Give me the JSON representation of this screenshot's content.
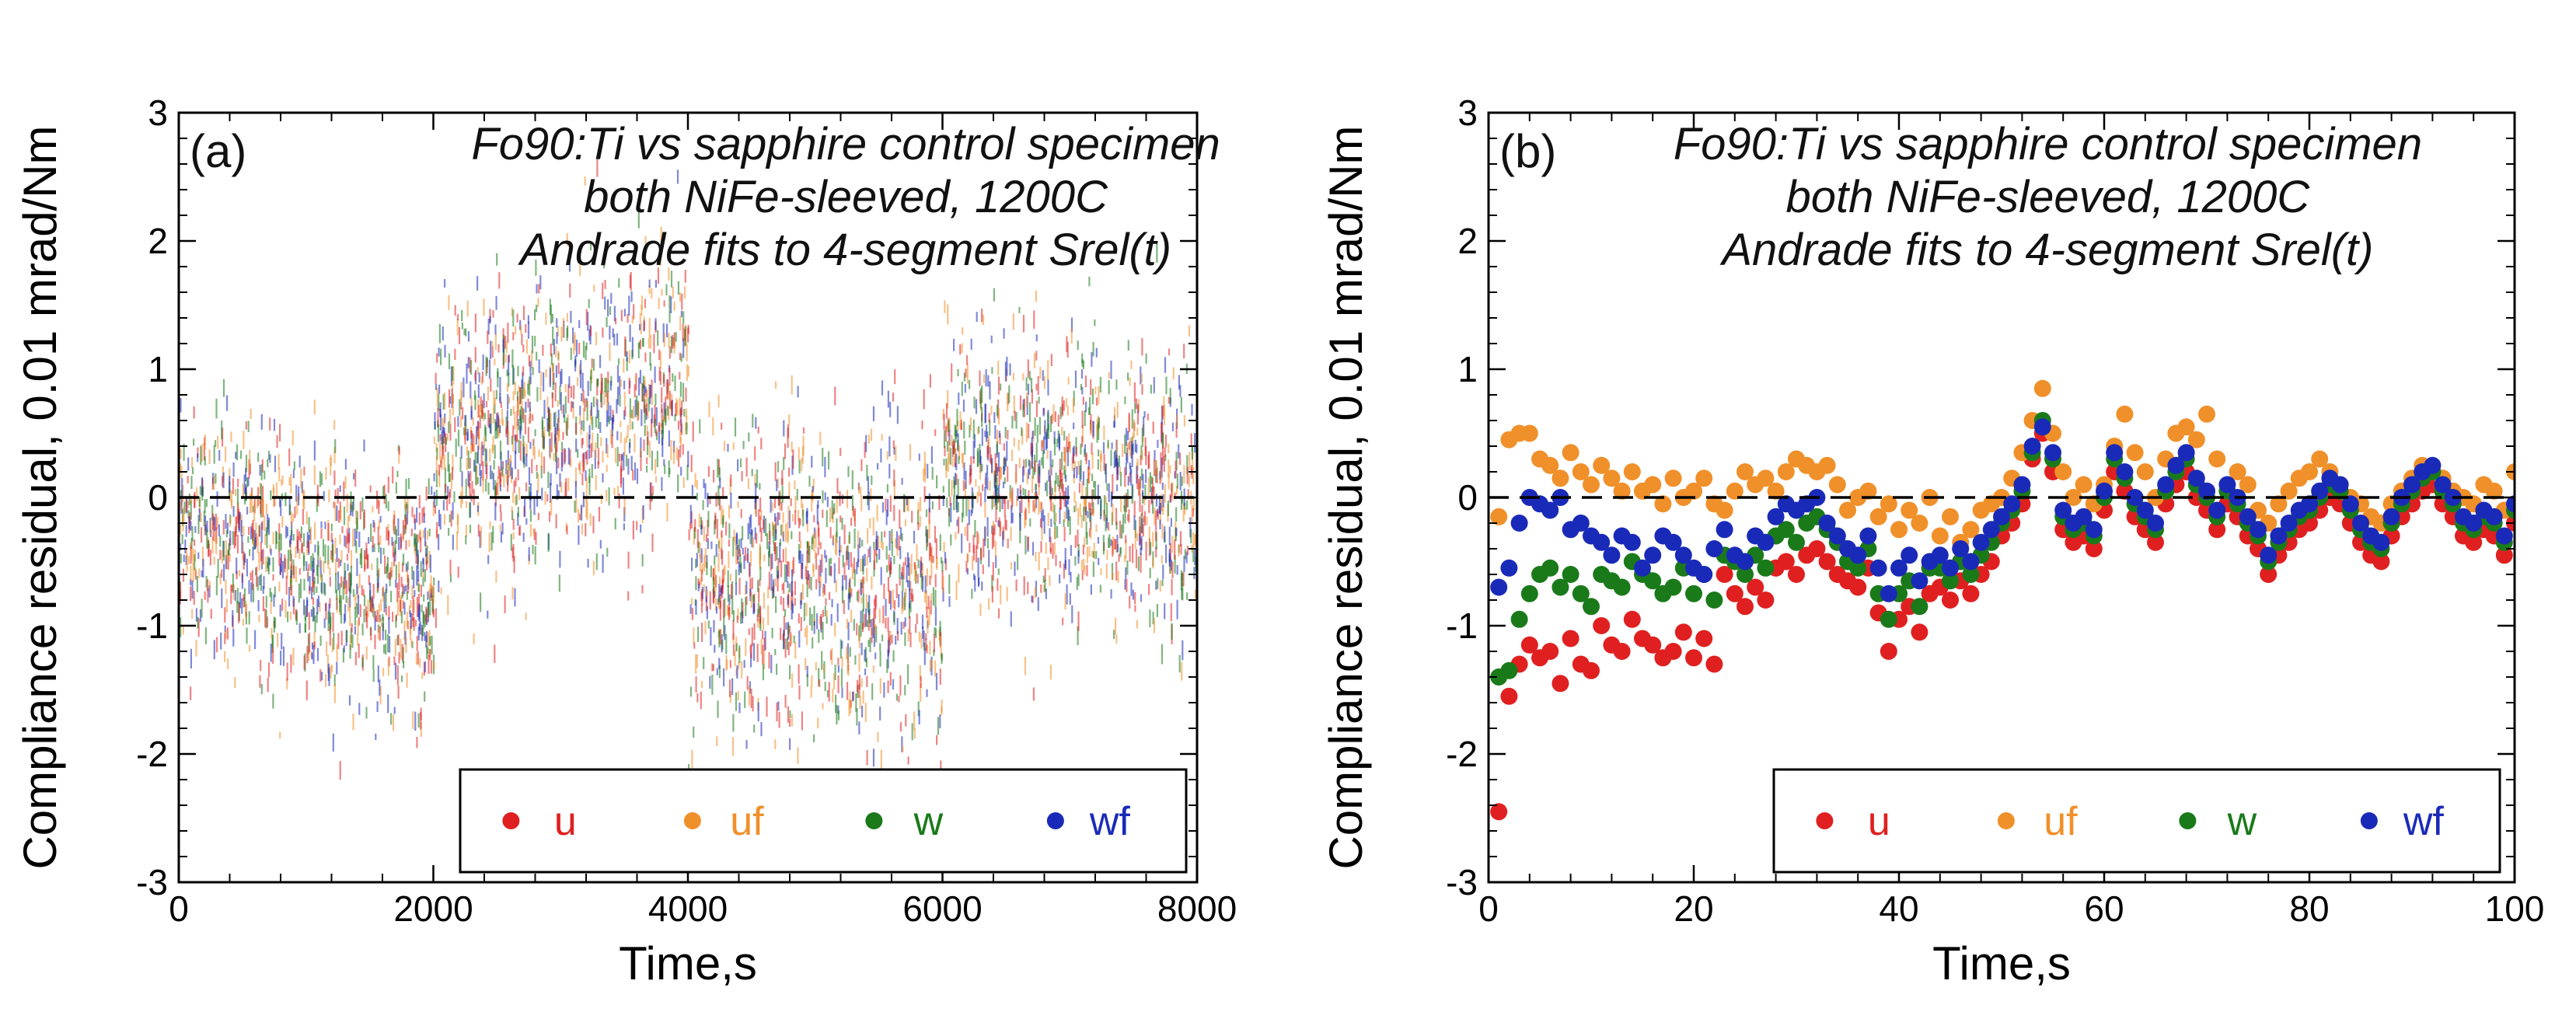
{
  "chart_data": [
    {
      "type": "scatter",
      "panel_label": "(a)",
      "annotation": [
        "Fo90:Ti vs sapphire control specimen",
        "both NiFe-sleeved, 1200C",
        "Andrade fits to 4-segment Srel(t)"
      ],
      "xlabel": "Time,s",
      "ylabel": "Compliance residual, 0.01 mrad/Nm",
      "xlim": [
        0,
        8000
      ],
      "ylim": [
        -3,
        3
      ],
      "xticks": [
        0,
        2000,
        4000,
        6000,
        8000
      ],
      "yticks": [
        -3,
        -2,
        -1,
        0,
        1,
        2,
        3
      ],
      "reference_line": 0,
      "legend_position": "bottom-right",
      "series": [
        {
          "name": "u",
          "color": "#e02020"
        },
        {
          "name": "uf",
          "color": "#f0902a"
        },
        {
          "name": "w",
          "color": "#1a7a1a"
        },
        {
          "name": "wf",
          "color": "#1a2ab8"
        }
      ],
      "segments": [
        {
          "x_start": 0,
          "x_end": 2000,
          "baseline_start": -0.2,
          "baseline_end": -0.8,
          "scatter": 0.45
        },
        {
          "x_start": 2000,
          "x_end": 4000,
          "baseline_start": 0.4,
          "baseline_end": 0.9,
          "scatter": 0.5
        },
        {
          "x_start": 4000,
          "x_end": 6000,
          "baseline_start": -0.6,
          "baseline_end": -0.7,
          "scatter": 0.6
        },
        {
          "x_start": 6000,
          "x_end": 8000,
          "baseline_start": 0.3,
          "baseline_end": 0.0,
          "scatter": 0.5
        }
      ]
    },
    {
      "type": "scatter",
      "panel_label": "(b)",
      "annotation": [
        "Fo90:Ti vs sapphire control specimen",
        "both NiFe-sleeved, 1200C",
        "Andrade fits to 4-segment Srel(t)"
      ],
      "xlabel": "Time,s",
      "ylabel": "Compliance residual, 0.01 mrad/Nm",
      "xlim": [
        0,
        100
      ],
      "ylim": [
        -3,
        3
      ],
      "xticks": [
        0,
        20,
        40,
        60,
        80,
        100
      ],
      "yticks": [
        -3,
        -2,
        -1,
        0,
        1,
        2,
        3
      ],
      "reference_line": 0,
      "legend_position": "bottom-right",
      "x": [
        1,
        2,
        3,
        4,
        5,
        6,
        7,
        8,
        9,
        10,
        11,
        12,
        13,
        14,
        15,
        16,
        17,
        18,
        19,
        20,
        21,
        22,
        23,
        24,
        25,
        26,
        27,
        28,
        29,
        30,
        31,
        32,
        33,
        34,
        35,
        36,
        37,
        38,
        39,
        40,
        41,
        42,
        43,
        44,
        45,
        46,
        47,
        48,
        49,
        50,
        51,
        52,
        53,
        54,
        55,
        56,
        57,
        58,
        59,
        60,
        61,
        62,
        63,
        64,
        65,
        66,
        67,
        68,
        69,
        70,
        71,
        72,
        73,
        74,
        75,
        76,
        77,
        78,
        79,
        80,
        81,
        82,
        83,
        84,
        85,
        86,
        87,
        88,
        89,
        90,
        91,
        92,
        93,
        94,
        95,
        96,
        97,
        98,
        99,
        100
      ],
      "series": [
        {
          "name": "u",
          "color": "#e02020",
          "values": [
            -2.45,
            -1.55,
            -1.3,
            -1.15,
            -1.25,
            -1.2,
            -1.45,
            -1.1,
            -1.3,
            -1.35,
            -1.0,
            -1.15,
            -1.2,
            -0.95,
            -1.1,
            -1.15,
            -1.25,
            -1.2,
            -1.05,
            -1.25,
            -1.1,
            -1.3,
            -0.6,
            -0.75,
            -0.85,
            -0.7,
            -0.8,
            -0.55,
            -0.5,
            -0.6,
            -0.45,
            -0.4,
            -0.5,
            -0.6,
            -0.65,
            -0.7,
            -0.55,
            -0.9,
            -1.2,
            -0.95,
            -0.85,
            -1.05,
            -0.75,
            -0.7,
            -0.8,
            -0.65,
            -0.75,
            -0.6,
            -0.5,
            -0.3,
            -0.2,
            -0.05,
            0.3,
            0.5,
            0.2,
            -0.25,
            -0.35,
            -0.3,
            -0.4,
            -0.1,
            0.2,
            0.05,
            -0.15,
            -0.25,
            -0.35,
            -0.05,
            0.1,
            0.2,
            0.0,
            -0.1,
            -0.25,
            -0.05,
            -0.15,
            -0.3,
            -0.4,
            -0.6,
            -0.45,
            -0.35,
            -0.25,
            -0.2,
            -0.1,
            0.0,
            -0.05,
            -0.2,
            -0.35,
            -0.45,
            -0.5,
            -0.3,
            -0.15,
            -0.05,
            0.05,
            0.1,
            -0.05,
            -0.15,
            -0.3,
            -0.35,
            -0.25,
            -0.3,
            -0.45,
            -0.2
          ]
        },
        {
          "name": "uf",
          "color": "#f0902a",
          "values": [
            -0.15,
            0.45,
            0.5,
            0.5,
            0.3,
            0.25,
            0.15,
            0.35,
            0.2,
            0.1,
            0.25,
            0.15,
            0.05,
            0.2,
            0.05,
            0.1,
            -0.05,
            0.15,
            0.0,
            0.05,
            0.15,
            -0.05,
            -0.1,
            0.05,
            0.2,
            0.1,
            0.15,
            0.05,
            0.2,
            0.3,
            0.25,
            0.2,
            0.25,
            0.1,
            -0.1,
            0.0,
            0.05,
            -0.15,
            -0.05,
            -0.25,
            -0.1,
            -0.2,
            0.0,
            -0.3,
            -0.15,
            -0.35,
            -0.25,
            -0.1,
            -0.05,
            0.0,
            0.15,
            0.35,
            0.6,
            0.85,
            0.5,
            0.2,
            0.0,
            0.1,
            -0.05,
            0.1,
            0.4,
            0.65,
            0.35,
            0.2,
            0.0,
            0.3,
            0.5,
            0.55,
            0.45,
            0.65,
            0.3,
            0.05,
            0.2,
            0.1,
            -0.1,
            -0.2,
            -0.05,
            0.05,
            0.15,
            0.2,
            0.3,
            0.2,
            0.1,
            0.0,
            -0.05,
            -0.15,
            -0.2,
            -0.05,
            0.05,
            0.15,
            0.25,
            0.2,
            0.15,
            0.05,
            0.0,
            -0.05,
            0.1,
            0.05,
            -0.1,
            0.2
          ]
        },
        {
          "name": "w",
          "color": "#1a7a1a",
          "values": [
            -1.4,
            -1.35,
            -0.95,
            -0.75,
            -0.6,
            -0.55,
            -0.7,
            -0.6,
            -0.75,
            -0.85,
            -0.6,
            -0.65,
            -0.7,
            -0.5,
            -0.6,
            -0.65,
            -0.75,
            -0.7,
            -0.55,
            -0.75,
            -0.6,
            -0.8,
            -0.45,
            -0.5,
            -0.6,
            -0.45,
            -0.55,
            -0.3,
            -0.25,
            -0.35,
            -0.2,
            -0.15,
            -0.25,
            -0.35,
            -0.5,
            -0.55,
            -0.4,
            -0.75,
            -0.95,
            -0.75,
            -0.65,
            -0.85,
            -0.55,
            -0.55,
            -0.65,
            -0.5,
            -0.6,
            -0.45,
            -0.35,
            -0.2,
            -0.1,
            0.05,
            0.35,
            0.6,
            0.3,
            -0.15,
            -0.25,
            -0.2,
            -0.3,
            0.0,
            0.3,
            0.15,
            -0.05,
            -0.15,
            -0.25,
            0.05,
            0.2,
            0.3,
            0.1,
            0.0,
            -0.15,
            0.05,
            -0.05,
            -0.2,
            -0.3,
            -0.5,
            -0.35,
            -0.25,
            -0.15,
            -0.1,
            0.0,
            0.1,
            0.05,
            -0.1,
            -0.25,
            -0.35,
            -0.4,
            -0.2,
            -0.05,
            0.05,
            0.15,
            0.2,
            0.05,
            -0.05,
            -0.2,
            -0.25,
            -0.15,
            -0.2,
            -0.35,
            -0.1
          ]
        },
        {
          "name": "wf",
          "color": "#1a2ab8",
          "values": [
            -0.7,
            -0.55,
            -0.2,
            0.0,
            -0.05,
            -0.1,
            0.0,
            -0.25,
            -0.2,
            -0.3,
            -0.35,
            -0.45,
            -0.3,
            -0.35,
            -0.55,
            -0.45,
            -0.3,
            -0.35,
            -0.45,
            -0.55,
            -0.6,
            -0.4,
            -0.25,
            -0.45,
            -0.5,
            -0.3,
            -0.35,
            -0.15,
            -0.05,
            -0.1,
            -0.05,
            0.0,
            -0.2,
            -0.3,
            -0.4,
            -0.45,
            -0.3,
            -0.55,
            -0.75,
            -0.55,
            -0.45,
            -0.65,
            -0.5,
            -0.45,
            -0.55,
            -0.4,
            -0.5,
            -0.35,
            -0.25,
            -0.15,
            -0.05,
            0.1,
            0.4,
            0.55,
            0.35,
            -0.1,
            -0.2,
            -0.15,
            -0.25,
            0.05,
            0.35,
            0.2,
            0.0,
            -0.1,
            -0.2,
            0.1,
            0.25,
            0.35,
            0.15,
            0.05,
            -0.1,
            0.1,
            0.0,
            -0.15,
            -0.25,
            -0.45,
            -0.3,
            -0.2,
            -0.1,
            -0.05,
            0.05,
            0.15,
            0.1,
            -0.05,
            -0.2,
            -0.3,
            -0.35,
            -0.15,
            0.0,
            0.1,
            0.2,
            0.25,
            0.1,
            0.0,
            -0.15,
            -0.2,
            -0.1,
            -0.15,
            -0.3,
            -0.05
          ]
        }
      ]
    }
  ]
}
